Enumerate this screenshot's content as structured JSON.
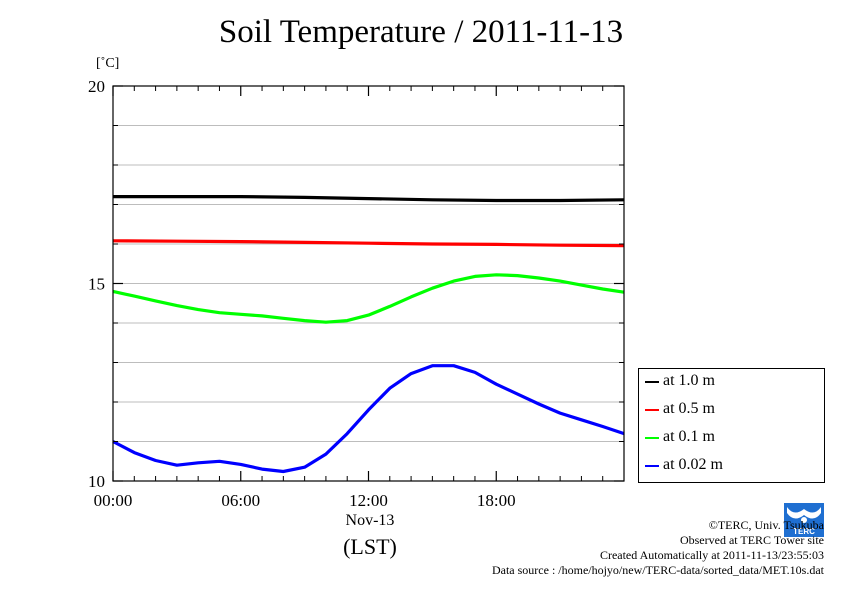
{
  "chart_data": {
    "type": "line",
    "title": "Soil Temperature / 2011-11-13",
    "ylabel": "[˚C]",
    "xlabel": "(LST)",
    "x_date_label": "Nov-13",
    "x_unit": "hour",
    "xlim": [
      0,
      24
    ],
    "ylim": [
      10,
      20
    ],
    "x_ticks": [
      0,
      6,
      12,
      18
    ],
    "x_tick_labels": [
      "00:00",
      "06:00",
      "12:00",
      "18:00"
    ],
    "y_ticks": [
      10,
      15,
      20
    ],
    "y_tick_labels": [
      "10",
      "15",
      "20"
    ],
    "grid": true,
    "legend_position": "right",
    "series": [
      {
        "name": "at 1.0 m",
        "color": "#000000",
        "x": [
          0,
          3,
          6,
          9,
          12,
          15,
          18,
          21,
          24
        ],
        "y": [
          17.2,
          17.2,
          17.2,
          17.18,
          17.15,
          17.12,
          17.1,
          17.1,
          17.12
        ]
      },
      {
        "name": "at 0.5 m",
        "color": "#ff0000",
        "x": [
          0,
          3,
          6,
          9,
          12,
          15,
          18,
          21,
          24
        ],
        "y": [
          16.08,
          16.07,
          16.06,
          16.04,
          16.02,
          16.0,
          15.99,
          15.97,
          15.96
        ]
      },
      {
        "name": "at 0.1 m",
        "color": "#00ff00",
        "x": [
          0,
          1,
          2,
          3,
          4,
          5,
          6,
          7,
          8,
          9,
          10,
          11,
          12,
          13,
          14,
          15,
          16,
          17,
          18,
          19,
          20,
          21,
          22,
          23,
          24
        ],
        "y": [
          14.8,
          14.68,
          14.56,
          14.44,
          14.34,
          14.26,
          14.22,
          14.18,
          14.12,
          14.06,
          14.02,
          14.06,
          14.2,
          14.42,
          14.66,
          14.88,
          15.06,
          15.18,
          15.22,
          15.2,
          15.14,
          15.06,
          14.96,
          14.86,
          14.78
        ]
      },
      {
        "name": "at 0.02 m",
        "color": "#0000ff",
        "x": [
          0,
          1,
          2,
          3,
          4,
          5,
          6,
          7,
          8,
          9,
          10,
          11,
          12,
          13,
          14,
          15,
          16,
          17,
          18,
          19,
          20,
          21,
          22,
          23,
          24
        ],
        "y": [
          11.0,
          10.72,
          10.52,
          10.4,
          10.46,
          10.5,
          10.42,
          10.3,
          10.24,
          10.35,
          10.68,
          11.2,
          11.8,
          12.35,
          12.72,
          12.92,
          12.92,
          12.75,
          12.45,
          12.2,
          11.95,
          11.72,
          11.55,
          11.38,
          11.2
        ]
      }
    ]
  },
  "credits": {
    "copyright": "©TERC, Univ. Tsukuba",
    "site": "Observed at TERC Tower site",
    "created": "Created Automatically at 2011-11-13/23:55:03",
    "source": "Data source : /home/hojyo/new/TERC-data/sorted_data/MET.10s.dat"
  },
  "logo": {
    "text": "TERC",
    "color": "#1f6fd1"
  }
}
